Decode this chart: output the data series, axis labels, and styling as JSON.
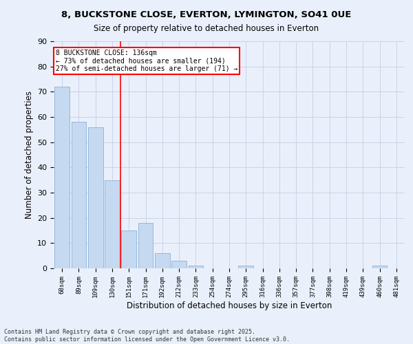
{
  "title1": "8, BUCKSTONE CLOSE, EVERTON, LYMINGTON, SO41 0UE",
  "title2": "Size of property relative to detached houses in Everton",
  "xlabel": "Distribution of detached houses by size in Everton",
  "ylabel": "Number of detached properties",
  "categories": [
    "68sqm",
    "89sqm",
    "109sqm",
    "130sqm",
    "151sqm",
    "171sqm",
    "192sqm",
    "212sqm",
    "233sqm",
    "254sqm",
    "274sqm",
    "295sqm",
    "316sqm",
    "336sqm",
    "357sqm",
    "377sqm",
    "398sqm",
    "419sqm",
    "439sqm",
    "460sqm",
    "481sqm"
  ],
  "values": [
    72,
    58,
    56,
    35,
    15,
    18,
    6,
    3,
    1,
    0,
    0,
    1,
    0,
    0,
    0,
    0,
    0,
    0,
    0,
    1,
    0
  ],
  "bar_color": "#c5d9f0",
  "bar_edge_color": "#8ab0d8",
  "grid_color": "#c8d4e8",
  "bg_color": "#eaf0fb",
  "vline_color": "red",
  "annotation_text": "8 BUCKSTONE CLOSE: 136sqm\n← 73% of detached houses are smaller (194)\n27% of semi-detached houses are larger (71) →",
  "annotation_box_color": "white",
  "annotation_box_edge_color": "red",
  "ylim": [
    0,
    90
  ],
  "yticks": [
    0,
    10,
    20,
    30,
    40,
    50,
    60,
    70,
    80,
    90
  ],
  "footnote": "Contains HM Land Registry data © Crown copyright and database right 2025.\nContains public sector information licensed under the Open Government Licence v3.0."
}
